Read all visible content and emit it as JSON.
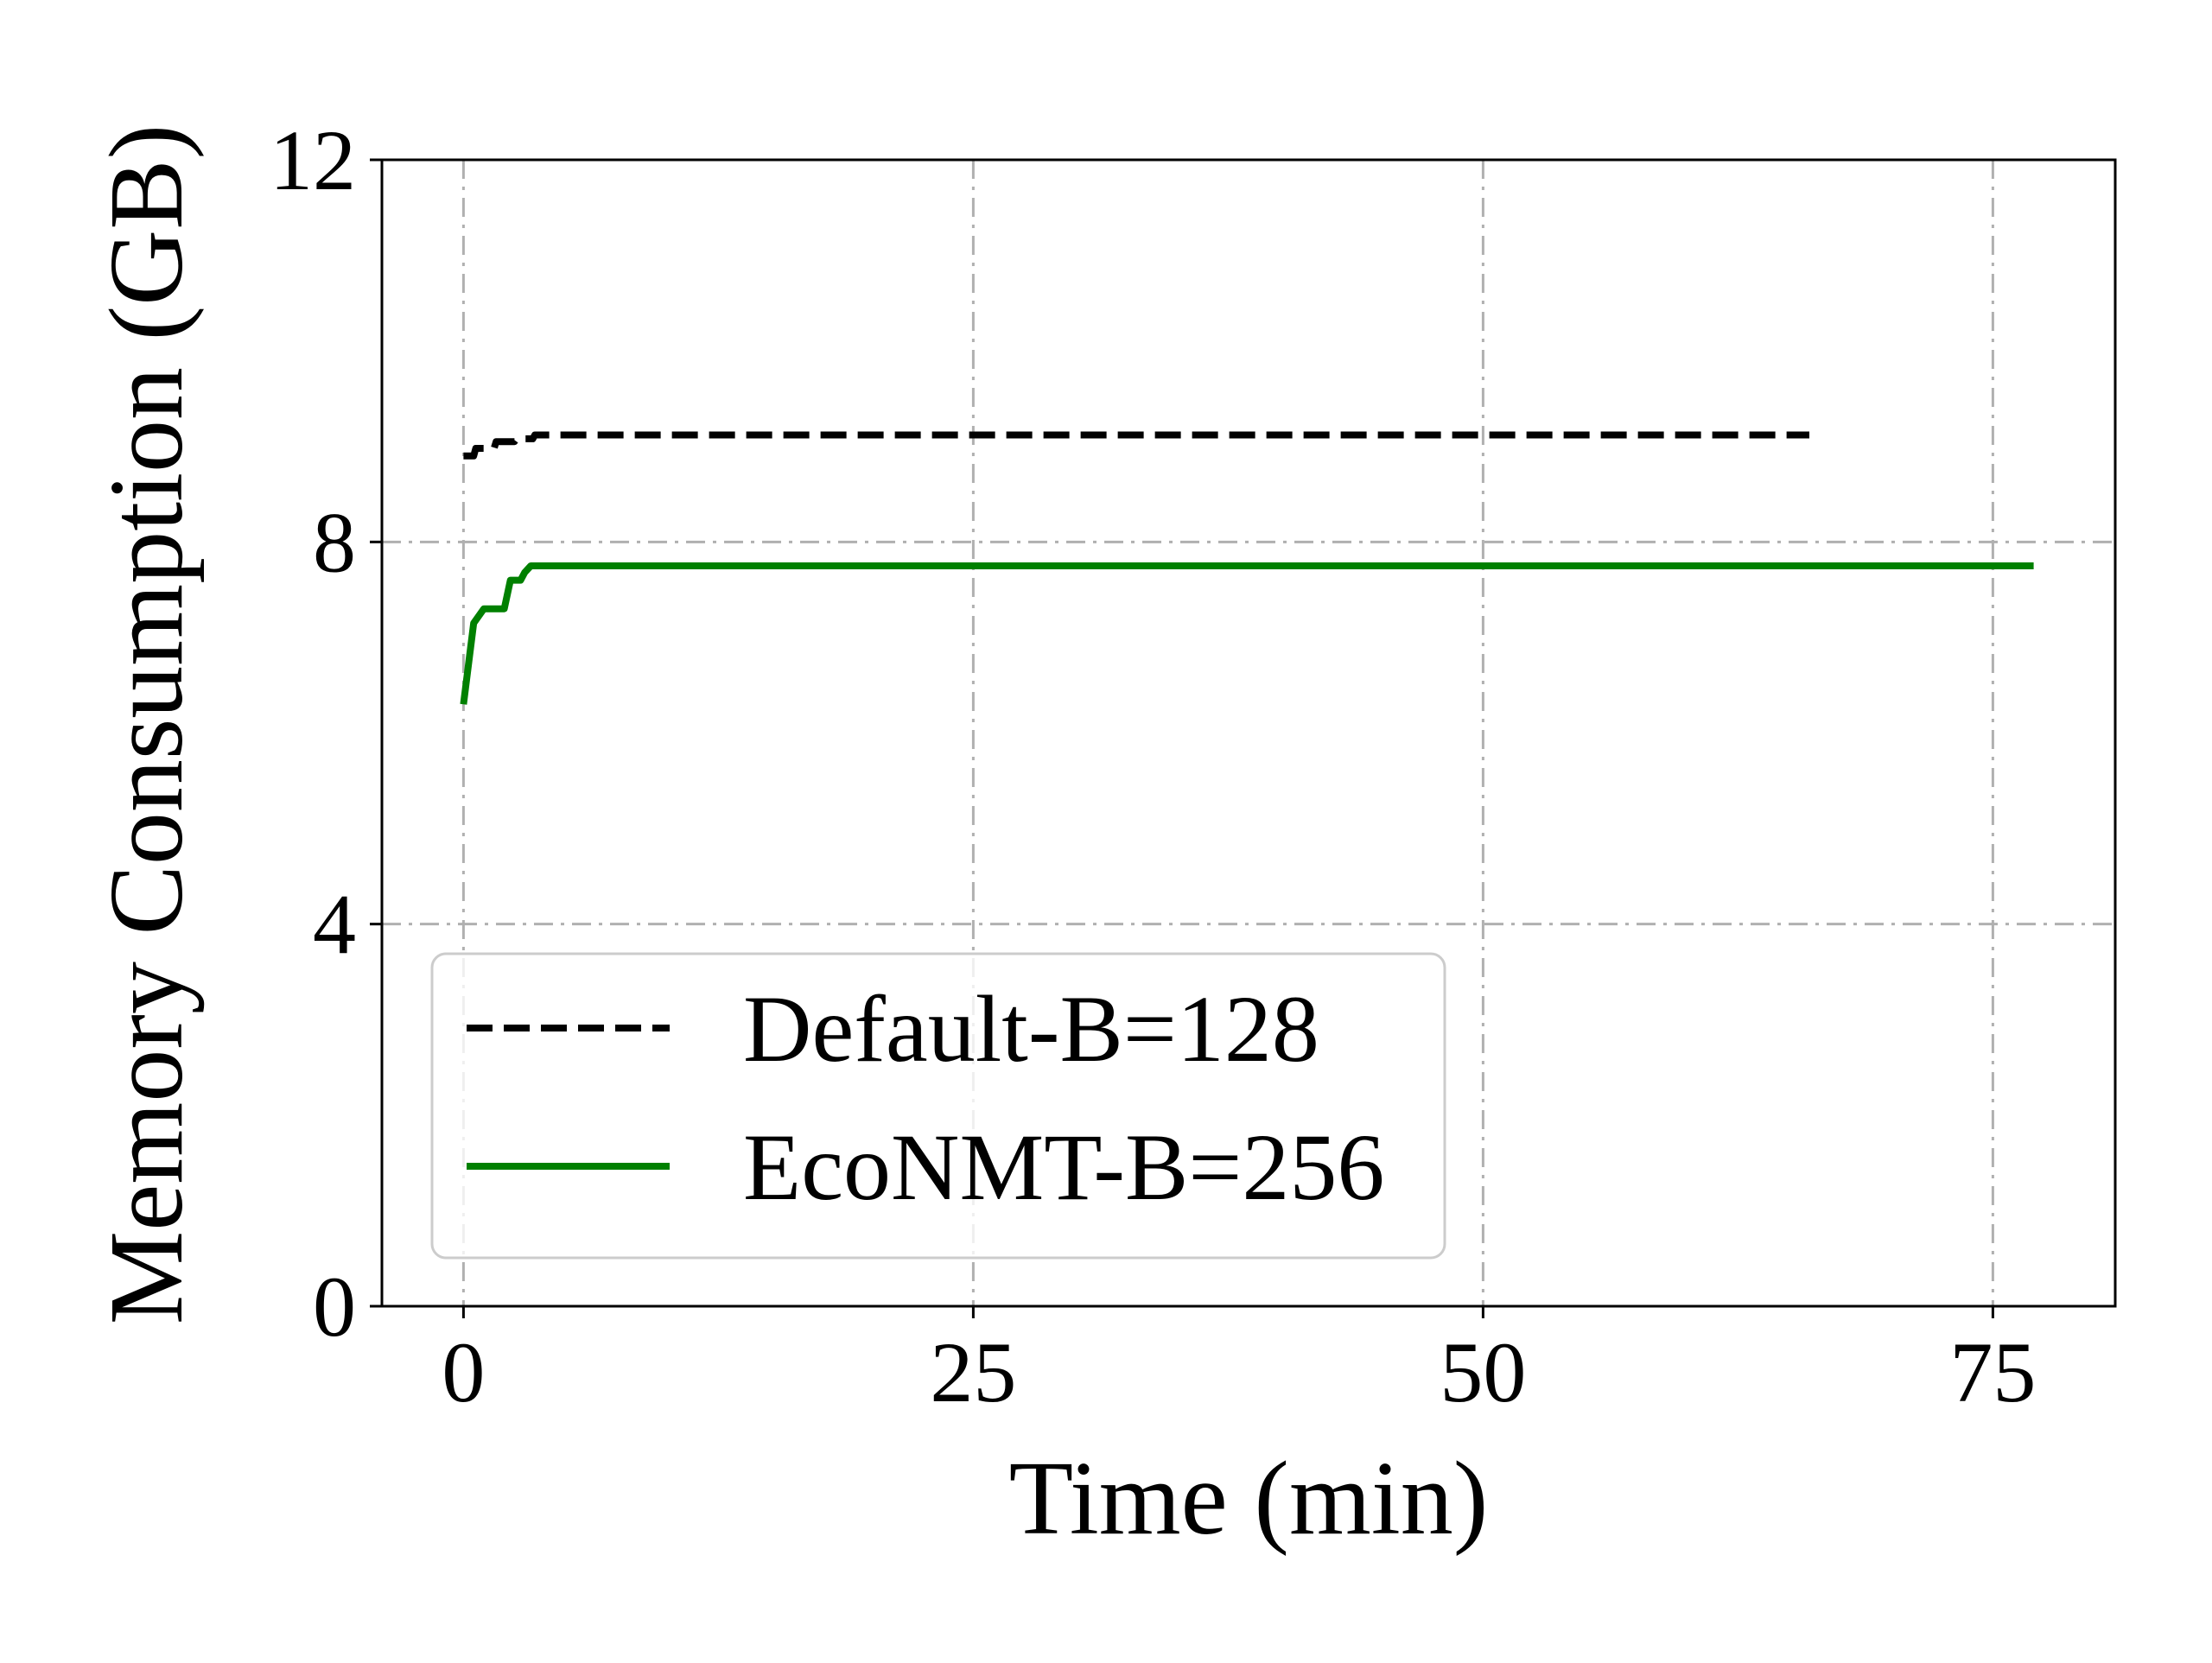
{
  "chart_data": {
    "type": "line",
    "title": "",
    "xlabel": "Time (min)",
    "ylabel": "Memory Consumption (GB)",
    "xlim": [
      -4,
      81
    ],
    "ylim": [
      0,
      12
    ],
    "xticks": [
      0,
      25,
      50,
      75
    ],
    "yticks": [
      0,
      4,
      8,
      12
    ],
    "grid": true,
    "grid_style": "dash-dot",
    "legend_position": "lower-left",
    "series": [
      {
        "name": "Default-B=128",
        "color": "#000000",
        "line_style": "dashed",
        "x": [
          0,
          0.5,
          0.6,
          1.5,
          1.6,
          2.5,
          2.6,
          3.4,
          3.5,
          4.0,
          66
        ],
        "y": [
          8.9,
          8.9,
          8.98,
          8.98,
          9.05,
          9.05,
          9.08,
          9.08,
          9.12,
          9.12,
          9.12
        ]
      },
      {
        "name": "EcoNMT-B=256",
        "color": "#008000",
        "line_style": "solid",
        "x": [
          0,
          0.5,
          1.0,
          1.6,
          2.0,
          2.3,
          2.5,
          2.8,
          3.0,
          3.3,
          77
        ],
        "y": [
          6.3,
          7.15,
          7.3,
          7.3,
          7.3,
          7.6,
          7.6,
          7.6,
          7.68,
          7.75,
          7.75
        ]
      }
    ]
  }
}
